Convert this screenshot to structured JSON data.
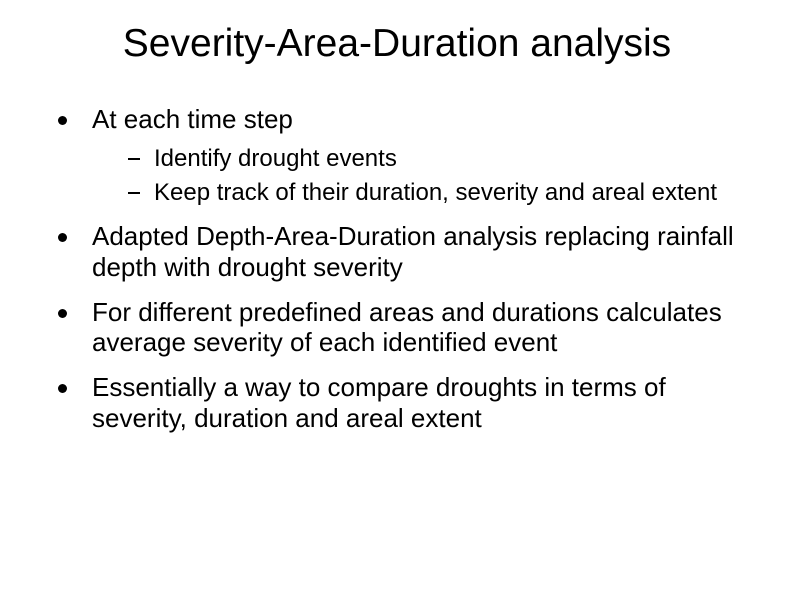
{
  "slide": {
    "title": "Severity-Area-Duration analysis",
    "title_fontsize": 39,
    "body_fontsize": 26,
    "sub_fontsize": 24,
    "background_color": "#ffffff",
    "text_color": "#000000",
    "font_family": "Trebuchet MS",
    "bullets": [
      {
        "text": "At each time step",
        "sub": [
          "Identify drought events",
          "Keep track of their duration, severity and areal extent"
        ]
      },
      {
        "text": "Adapted Depth-Area-Duration analysis replacing rainfall depth with drought severity",
        "sub": []
      },
      {
        "text": "For different predefined areas and durations calculates average severity of each identified event",
        "sub": []
      },
      {
        "text": "Essentially a way to compare droughts in terms of severity, duration and areal extent",
        "sub": []
      }
    ]
  }
}
